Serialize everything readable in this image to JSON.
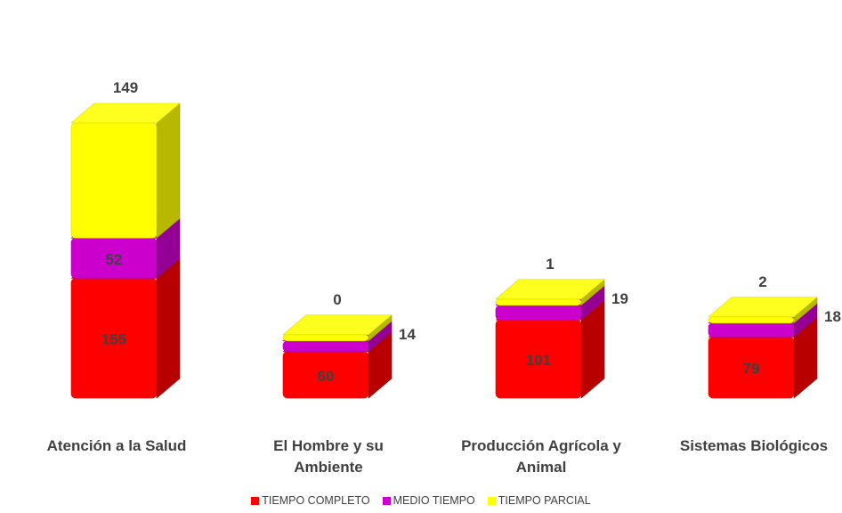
{
  "chart_data": {
    "type": "bar",
    "stacked": true,
    "three_d": true,
    "grid": false,
    "legend_position": "bottom",
    "categories": [
      "Atención a la Salud",
      "El Hombre y su Ambiente",
      "Producción Agrícola y Animal",
      "Sistemas Biológicos"
    ],
    "category_lines": [
      [
        "Atención a la Salud"
      ],
      [
        "El Hombre y su",
        "Ambiente"
      ],
      [
        "Producción Agrícola y",
        "Animal"
      ],
      [
        "Sistemas Biológicos"
      ]
    ],
    "series": [
      {
        "name": "TIEMPO COMPLETO",
        "values": [
          155,
          60,
          101,
          79
        ],
        "color": "#ff0000"
      },
      {
        "name": "MEDIO TIEMPO",
        "values": [
          52,
          14,
          19,
          18
        ],
        "color": "#cc00cc"
      },
      {
        "name": "TIEMPO PARCIAL",
        "values": [
          149,
          0,
          1,
          2
        ],
        "color": "#ffff00"
      }
    ]
  }
}
